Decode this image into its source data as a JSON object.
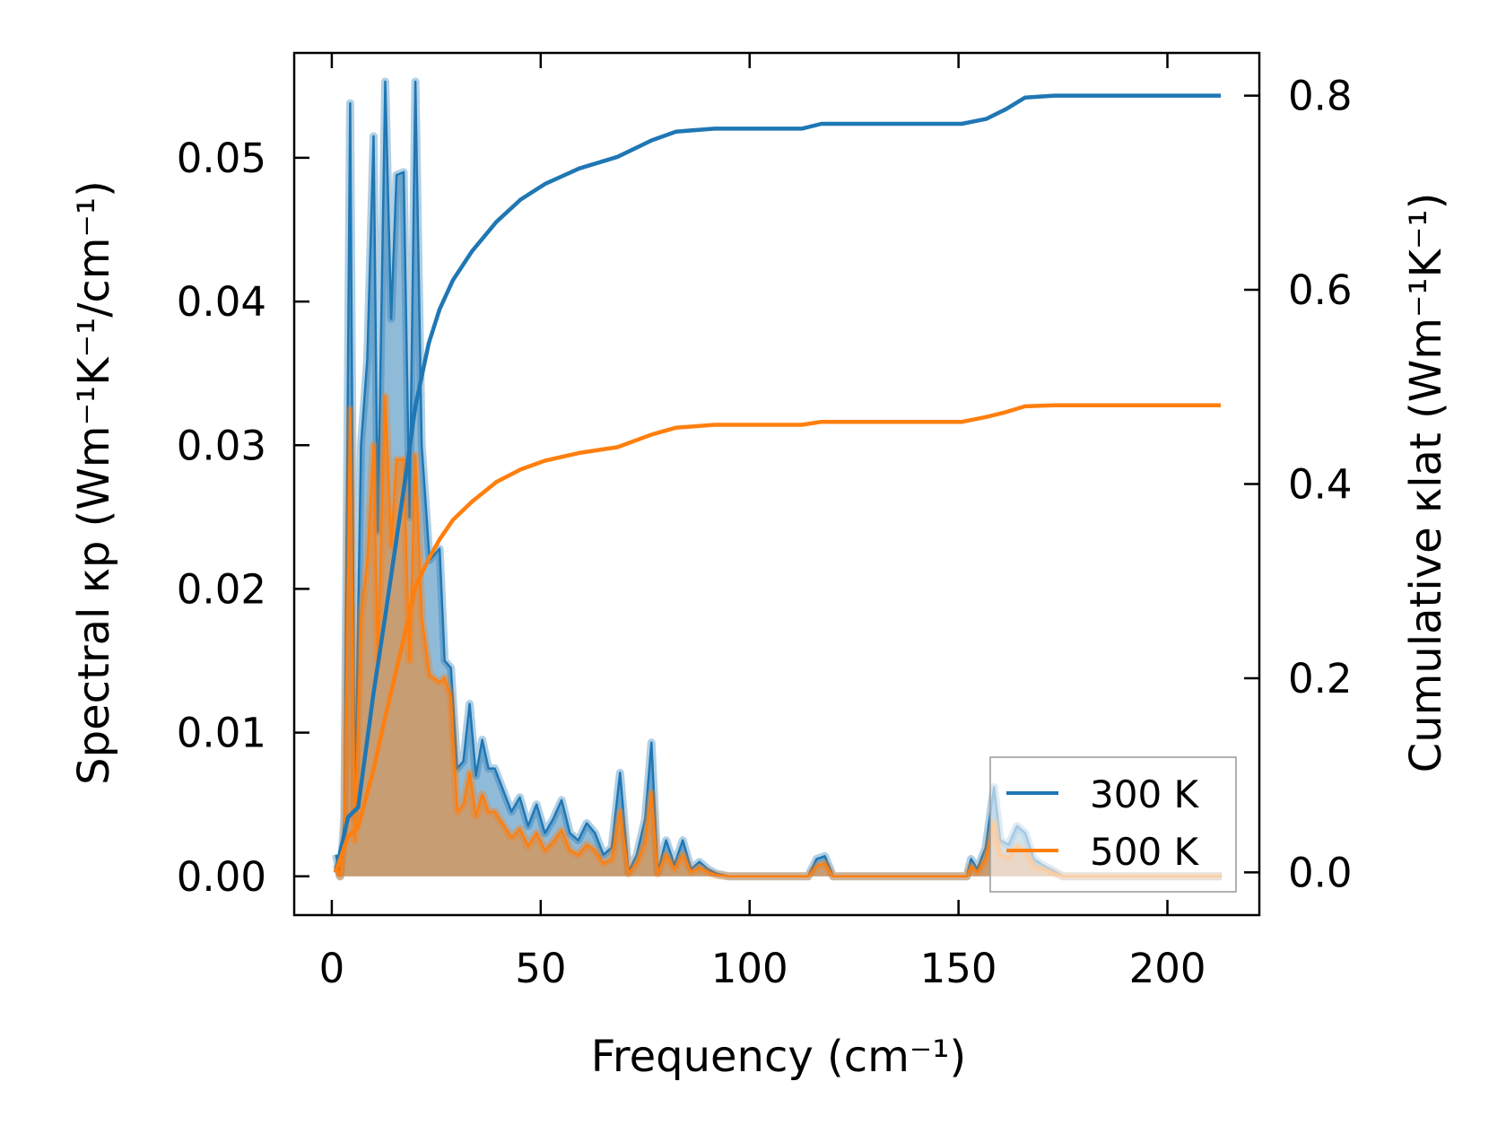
{
  "chart_data": {
    "type": "area",
    "xlabel": "Frequency (cm⁻¹)",
    "ylabel_left": "Spectral κp (Wm⁻¹K⁻¹/cm⁻¹)",
    "ylabel_right": "Cumulative κlat (Wm⁻¹K⁻¹)",
    "xlim": [
      -9,
      222
    ],
    "ylim_left": [
      -0.0027,
      0.0573
    ],
    "ylim_right": [
      -0.044,
      0.844
    ],
    "xticks": [
      "0",
      "50",
      "100",
      "150",
      "200"
    ],
    "xtick_values": [
      0,
      50,
      100,
      150,
      200
    ],
    "yticks_left": [
      "0.00",
      "0.01",
      "0.02",
      "0.03",
      "0.04",
      "0.05"
    ],
    "ytick_left_values": [
      0,
      0.01,
      0.02,
      0.03,
      0.04,
      0.05
    ],
    "yticks_right": [
      "0.0",
      "0.2",
      "0.4",
      "0.6",
      "0.8"
    ],
    "ytick_right_values": [
      0,
      0.2,
      0.4,
      0.6,
      0.8
    ],
    "legend": {
      "placement": "lower-right",
      "entries": [
        "300 K",
        "500 K"
      ]
    },
    "colors": {
      "300 K": "#1f77b4",
      "500 K": "#ff7f0e"
    },
    "series": [
      {
        "name": "300 K",
        "spectral": [
          [
            1,
            0.0015
          ],
          [
            2,
            0
          ],
          [
            3,
            0.004
          ],
          [
            4.4,
            0.0538
          ],
          [
            5.5,
            0.004
          ],
          [
            7,
            0.03
          ],
          [
            8.5,
            0.036
          ],
          [
            10,
            0.0515
          ],
          [
            11,
            0.024
          ],
          [
            12.8,
            0.0553
          ],
          [
            14.2,
            0.0388
          ],
          [
            15.5,
            0.0488
          ],
          [
            17.2,
            0.049
          ],
          [
            18.6,
            0.025
          ],
          [
            20,
            0.0553
          ],
          [
            21.5,
            0.03
          ],
          [
            23.4,
            0.022
          ],
          [
            25.8,
            0.0228
          ],
          [
            27,
            0.015
          ],
          [
            28.5,
            0.0145
          ],
          [
            30,
            0.0075
          ],
          [
            31.5,
            0.008
          ],
          [
            33,
            0.012
          ],
          [
            34.5,
            0.007
          ],
          [
            36,
            0.0095
          ],
          [
            37.5,
            0.0075
          ],
          [
            39,
            0.0075
          ],
          [
            41,
            0.006
          ],
          [
            43,
            0.0045
          ],
          [
            45,
            0.0055
          ],
          [
            47,
            0.0035
          ],
          [
            49,
            0.005
          ],
          [
            51,
            0.003
          ],
          [
            53,
            0.004
          ],
          [
            55,
            0.0053
          ],
          [
            57,
            0.003
          ],
          [
            59,
            0.0025
          ],
          [
            61,
            0.0037
          ],
          [
            63,
            0.003
          ],
          [
            65,
            0.0015
          ],
          [
            67,
            0.002
          ],
          [
            69,
            0.0072
          ],
          [
            71,
            0.0003
          ],
          [
            73,
            0.0015
          ],
          [
            75,
            0.004
          ],
          [
            76.5,
            0.0093
          ],
          [
            78,
            0.0003
          ],
          [
            80,
            0.0025
          ],
          [
            82,
            0.0008
          ],
          [
            84,
            0.0025
          ],
          [
            86,
            0.0005
          ],
          [
            88,
            0.001
          ],
          [
            90,
            0.0005
          ],
          [
            92,
            0.0002
          ],
          [
            95,
            0
          ],
          [
            114,
            0
          ],
          [
            116,
            0.0012
          ],
          [
            118,
            0.0014
          ],
          [
            120,
            0
          ],
          [
            152,
            0
          ],
          [
            153,
            0.0012
          ],
          [
            154.5,
            0.0005
          ],
          [
            156.5,
            0.002
          ],
          [
            158.5,
            0.0062
          ],
          [
            160,
            0.0025
          ],
          [
            162,
            0.0022
          ],
          [
            164,
            0.0035
          ],
          [
            166,
            0.003
          ],
          [
            168,
            0.0012
          ],
          [
            170,
            0.0008
          ],
          [
            172,
            0.0005
          ],
          [
            175,
            0
          ],
          [
            213,
            0
          ]
        ],
        "cumulative": [
          [
            0.9,
            0
          ],
          [
            3.9,
            0.057
          ],
          [
            6.3,
            0.067
          ],
          [
            10,
            0.185
          ],
          [
            12.8,
            0.264
          ],
          [
            17.4,
            0.4
          ],
          [
            20,
            0.48
          ],
          [
            23.2,
            0.545
          ],
          [
            25.8,
            0.58
          ],
          [
            29,
            0.61
          ],
          [
            33.6,
            0.64
          ],
          [
            39.4,
            0.67
          ],
          [
            45.2,
            0.693
          ],
          [
            51,
            0.709
          ],
          [
            59.2,
            0.725
          ],
          [
            68.4,
            0.737
          ],
          [
            76.6,
            0.754
          ],
          [
            82.4,
            0.763
          ],
          [
            91.6,
            0.766
          ],
          [
            112.5,
            0.766
          ],
          [
            117.2,
            0.771
          ],
          [
            150.8,
            0.771
          ],
          [
            156.6,
            0.776
          ],
          [
            161.3,
            0.786
          ],
          [
            165.9,
            0.798
          ],
          [
            172.9,
            0.8
          ],
          [
            212.8,
            0.8
          ]
        ]
      },
      {
        "name": "500 K",
        "spectral": [
          [
            1,
            0.0008
          ],
          [
            2,
            0
          ],
          [
            3,
            0.0025
          ],
          [
            4.4,
            0.0325
          ],
          [
            5.5,
            0.0025
          ],
          [
            7,
            0.018
          ],
          [
            8.5,
            0.022
          ],
          [
            10,
            0.03
          ],
          [
            11,
            0.015
          ],
          [
            12.8,
            0.0334
          ],
          [
            14.2,
            0.023
          ],
          [
            15.5,
            0.029
          ],
          [
            17.2,
            0.029
          ],
          [
            18.6,
            0.015
          ],
          [
            20,
            0.0293
          ],
          [
            21.5,
            0.018
          ],
          [
            23.4,
            0.014
          ],
          [
            25.8,
            0.0135
          ],
          [
            27,
            0.0138
          ],
          [
            28.5,
            0.0125
          ],
          [
            30,
            0.0045
          ],
          [
            31.5,
            0.005
          ],
          [
            33,
            0.0072
          ],
          [
            34.5,
            0.0042
          ],
          [
            36,
            0.0057
          ],
          [
            37.5,
            0.0045
          ],
          [
            39,
            0.0045
          ],
          [
            41,
            0.0036
          ],
          [
            43,
            0.0027
          ],
          [
            45,
            0.0033
          ],
          [
            47,
            0.0021
          ],
          [
            49,
            0.003
          ],
          [
            51,
            0.0018
          ],
          [
            53,
            0.0024
          ],
          [
            55,
            0.0032
          ],
          [
            57,
            0.0018
          ],
          [
            59,
            0.0015
          ],
          [
            61,
            0.0022
          ],
          [
            63,
            0.0018
          ],
          [
            65,
            0.0009
          ],
          [
            67,
            0.0012
          ],
          [
            69,
            0.0045
          ],
          [
            71,
            0.0002
          ],
          [
            73,
            0.0009
          ],
          [
            75,
            0.0024
          ],
          [
            76.5,
            0.0058
          ],
          [
            78,
            0.0002
          ],
          [
            80,
            0.0015
          ],
          [
            82,
            0.0005
          ],
          [
            84,
            0.0015
          ],
          [
            86,
            0.0003
          ],
          [
            88,
            0.0006
          ],
          [
            90,
            0.0003
          ],
          [
            92,
            0.0001
          ],
          [
            95,
            0
          ],
          [
            114,
            0
          ],
          [
            116,
            0.0007
          ],
          [
            118,
            0.0009
          ],
          [
            120,
            0
          ],
          [
            152,
            0
          ],
          [
            153,
            0.0007
          ],
          [
            154.5,
            0.0003
          ],
          [
            156.5,
            0.0012
          ],
          [
            158.5,
            0.0038
          ],
          [
            160,
            0.0015
          ],
          [
            162,
            0.0013
          ],
          [
            164,
            0.0021
          ],
          [
            166,
            0.0018
          ],
          [
            168,
            0.0007
          ],
          [
            170,
            0.0005
          ],
          [
            172,
            0.0003
          ],
          [
            175,
            0
          ],
          [
            213,
            0
          ]
        ],
        "cumulative": [
          [
            0.9,
            0
          ],
          [
            3.9,
            0.037
          ],
          [
            6.3,
            0.047
          ],
          [
            10,
            0.106
          ],
          [
            12.8,
            0.16
          ],
          [
            17.4,
            0.244
          ],
          [
            20,
            0.294
          ],
          [
            23.2,
            0.323
          ],
          [
            25.8,
            0.343
          ],
          [
            29,
            0.363
          ],
          [
            33.6,
            0.382
          ],
          [
            39.4,
            0.402
          ],
          [
            45.2,
            0.415
          ],
          [
            51,
            0.424
          ],
          [
            59.2,
            0.432
          ],
          [
            68.4,
            0.438
          ],
          [
            76.6,
            0.451
          ],
          [
            82.4,
            0.458
          ],
          [
            91.6,
            0.461
          ],
          [
            112.5,
            0.461
          ],
          [
            117.2,
            0.464
          ],
          [
            150.8,
            0.464
          ],
          [
            156.6,
            0.469
          ],
          [
            161.3,
            0.474
          ],
          [
            165.9,
            0.48
          ],
          [
            172.9,
            0.481
          ],
          [
            212.8,
            0.481
          ]
        ]
      }
    ]
  }
}
